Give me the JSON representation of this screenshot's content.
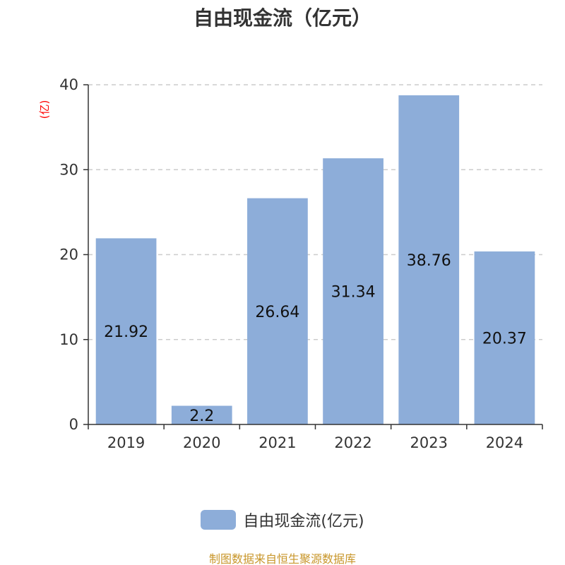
{
  "chart_data": {
    "type": "bar",
    "title": "自由现金流（亿元）",
    "ylabel": "(亿)",
    "categories": [
      "2019",
      "2020",
      "2021",
      "2022",
      "2023",
      "2024"
    ],
    "series": [
      {
        "name": "自由现金流(亿元)",
        "values": [
          21.92,
          2.2,
          26.64,
          31.34,
          38.76,
          20.37
        ],
        "color": "#8dadd9"
      }
    ],
    "ylim": [
      0,
      40
    ],
    "yticks": [
      0,
      10,
      20,
      30,
      40
    ],
    "grid": true,
    "legend_position": "bottom-center"
  },
  "footer": {
    "text": "制图数据来自恒生聚源数据库",
    "color": "#c8962a"
  },
  "colors": {
    "axis": "#333333",
    "grid": "#cccccc",
    "ylabel": "#ff0000",
    "data_label": "#111111",
    "tick_label": "#333333"
  }
}
